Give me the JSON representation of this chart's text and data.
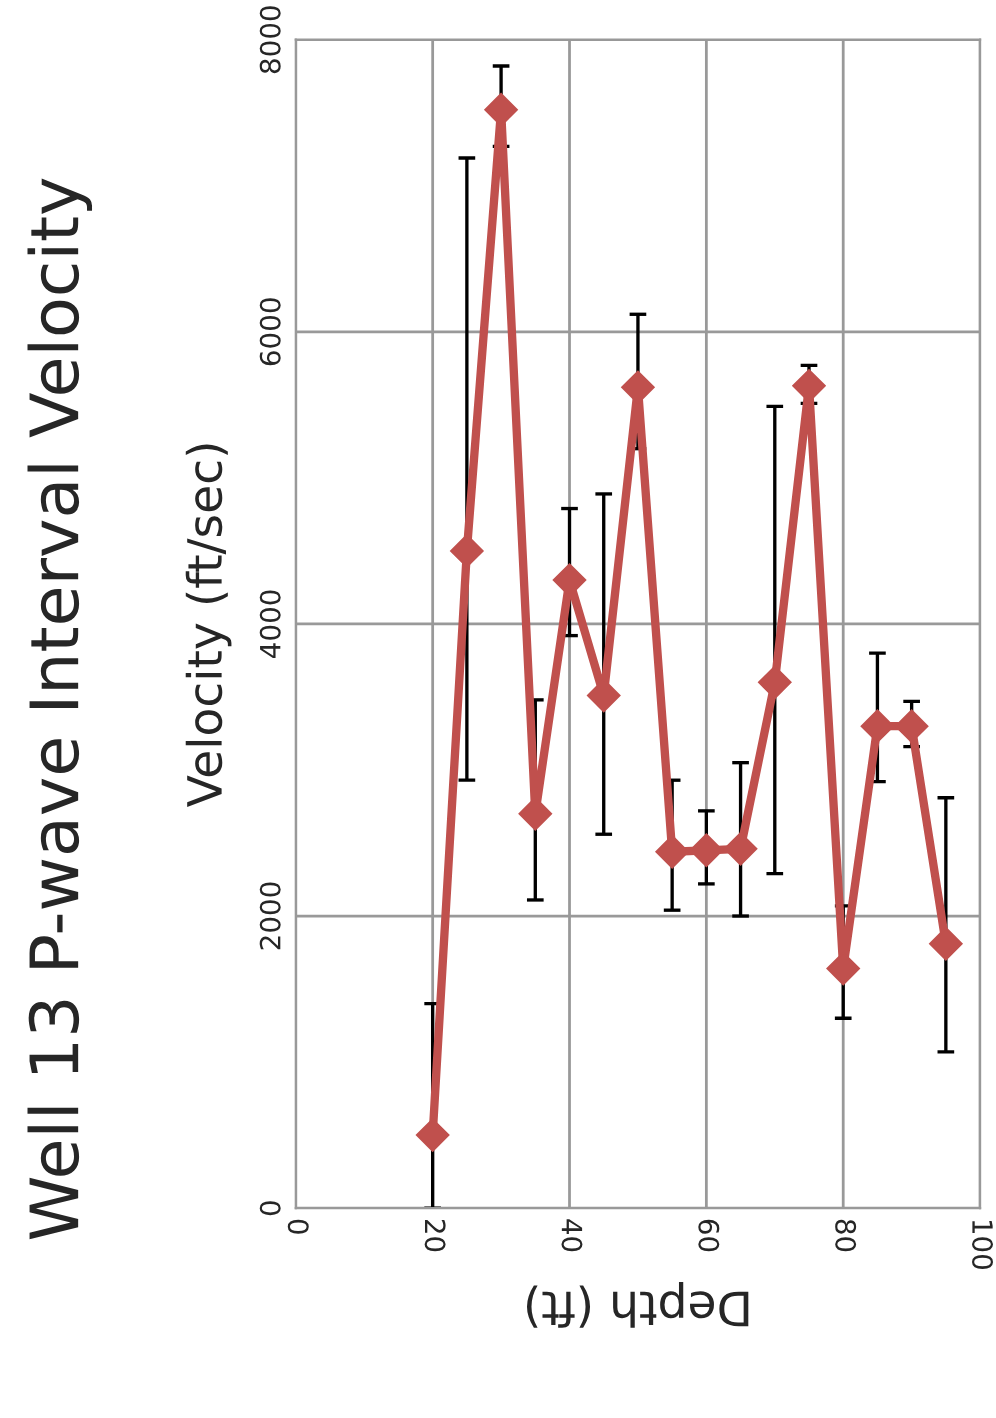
{
  "chart_data": {
    "type": "line",
    "title": "Well 13 P-wave Interval Velocity",
    "xlabel": "Depth (ft)",
    "ylabel": "Velocity (ft/sec)",
    "x": [
      20,
      25,
      30,
      35,
      40,
      45,
      50,
      55,
      60,
      65,
      70,
      75,
      80,
      85,
      90,
      95
    ],
    "series": [
      {
        "color": "#c0504d",
        "values": [
          500,
          4500,
          7520,
          2700,
          4300,
          3510,
          5620,
          2440,
          2450,
          2460,
          3600,
          5630,
          1640,
          3300,
          3300,
          1810
        ],
        "errors": [
          [
            0,
            1400
          ],
          [
            2930,
            7190
          ],
          [
            7270,
            7820
          ],
          [
            2110,
            3480
          ],
          [
            3920,
            4790
          ],
          [
            2560,
            4890
          ],
          [
            5200,
            6120
          ],
          [
            2040,
            2930
          ],
          [
            2220,
            2720
          ],
          [
            2000,
            3050
          ],
          [
            2290,
            5490
          ],
          [
            5510,
            5770
          ],
          [
            1300,
            2070
          ],
          [
            2920,
            3800
          ],
          [
            3160,
            3470
          ],
          [
            1070,
            2810
          ]
        ]
      }
    ],
    "xlim": [
      0,
      100
    ],
    "xticks": [
      0,
      20,
      40,
      60,
      80,
      100
    ],
    "ylim": [
      0,
      8000
    ],
    "yticks": [
      0,
      2000,
      4000,
      6000,
      8000
    ],
    "grid": true,
    "marker": "diamond",
    "line_style": "solid",
    "legend": false
  }
}
